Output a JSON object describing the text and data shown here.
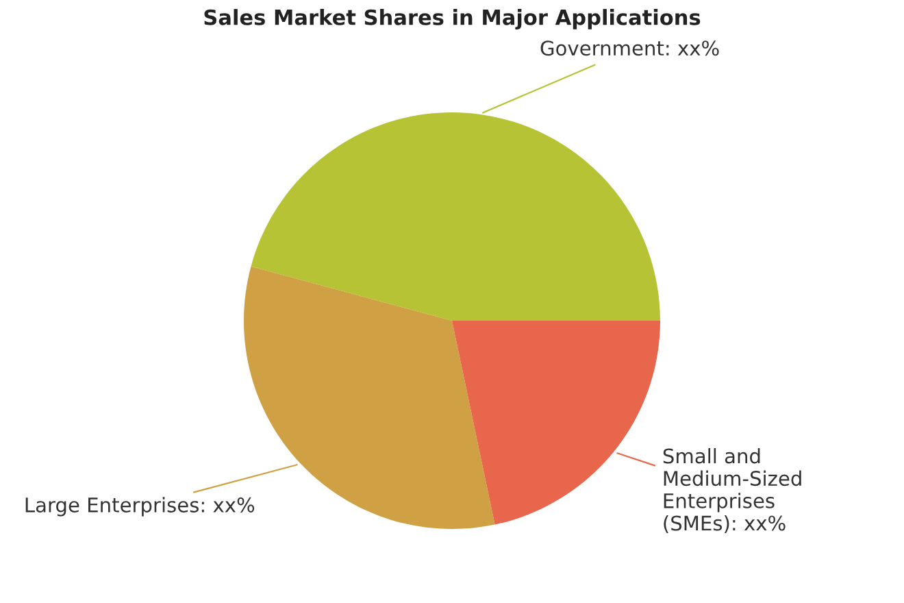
{
  "chart_data": {
    "type": "pie",
    "title": "Sales Market Shares in Major Applications",
    "categories": [
      "Government",
      "Large Enterprises",
      "Small and\nMedium-Sized\nEnterprises\n(SMEs)"
    ],
    "values": [
      45.8,
      32.5,
      21.7
    ],
    "colors": [
      "#b5c334",
      "#cfa144",
      "#e8664c"
    ],
    "value_labels": [
      "xx%",
      "xx%",
      "xx%"
    ]
  }
}
